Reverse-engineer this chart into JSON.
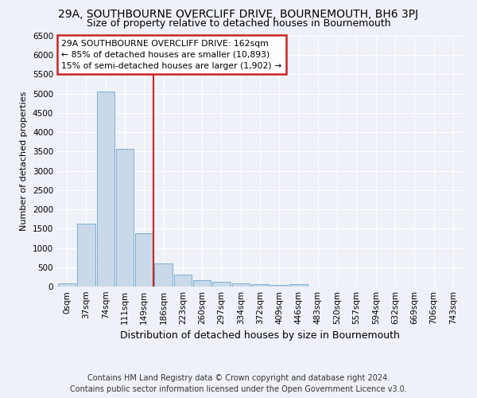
{
  "title1": "29A, SOUTHBOURNE OVERCLIFF DRIVE, BOURNEMOUTH, BH6 3PJ",
  "title2": "Size of property relative to detached houses in Bournemouth",
  "xlabel": "Distribution of detached houses by size in Bournemouth",
  "ylabel": "Number of detached properties",
  "footer1": "Contains HM Land Registry data © Crown copyright and database right 2024.",
  "footer2": "Contains public sector information licensed under the Open Government Licence v3.0.",
  "bar_labels": [
    "0sqm",
    "37sqm",
    "74sqm",
    "111sqm",
    "149sqm",
    "186sqm",
    "223sqm",
    "260sqm",
    "297sqm",
    "334sqm",
    "372sqm",
    "409sqm",
    "446sqm",
    "483sqm",
    "520sqm",
    "557sqm",
    "594sqm",
    "632sqm",
    "669sqm",
    "706sqm",
    "743sqm"
  ],
  "bar_values": [
    75,
    1630,
    5060,
    3580,
    1390,
    590,
    305,
    155,
    115,
    80,
    55,
    35,
    65,
    0,
    0,
    0,
    0,
    0,
    0,
    0,
    0
  ],
  "bar_color": "#c9d9ea",
  "bar_edgecolor": "#7aaed0",
  "ylim": [
    0,
    6500
  ],
  "yticks": [
    0,
    500,
    1000,
    1500,
    2000,
    2500,
    3000,
    3500,
    4000,
    4500,
    5000,
    5500,
    6000,
    6500
  ],
  "vline_x": 4.5,
  "vline_color": "#cc2222",
  "annotation_text": "29A SOUTHBOURNE OVERCLIFF DRIVE: 162sqm\n← 85% of detached houses are smaller (10,893)\n15% of semi-detached houses are larger (1,902) →",
  "annotation_box_facecolor": "#ffffff",
  "annotation_box_edgecolor": "#cc2222",
  "background_color": "#eef2f8",
  "grid_color": "#ffffff",
  "title1_fontsize": 10,
  "title2_fontsize": 9,
  "ylabel_fontsize": 8,
  "xlabel_fontsize": 9,
  "tick_fontsize": 7.5,
  "ytick_fontsize": 7.5,
  "annotation_fontsize": 7.8,
  "footer_fontsize": 7
}
